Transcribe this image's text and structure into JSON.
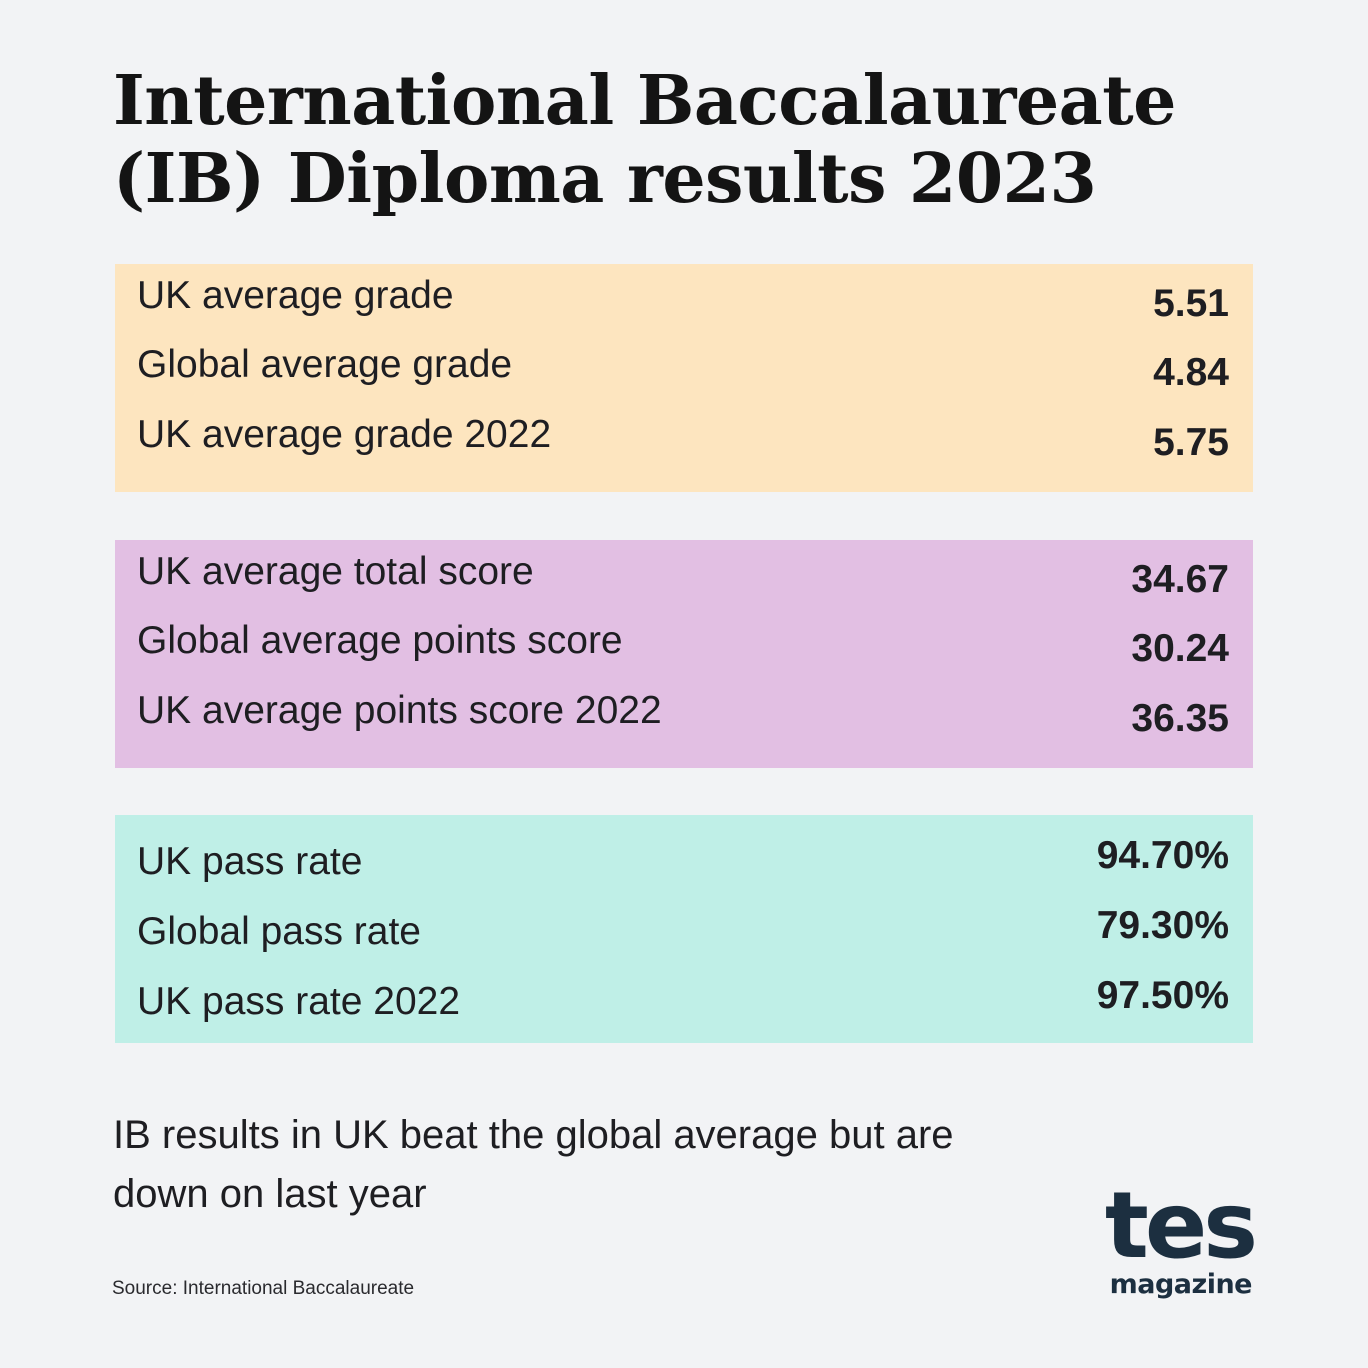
{
  "title": "International Baccalaureate (IB) Diploma results 2023",
  "panels": [
    {
      "color": "#fde5bf",
      "rows": [
        {
          "label": "UK average grade",
          "value": "5.51"
        },
        {
          "label": "Global average grade",
          "value": "4.84"
        },
        {
          "label": "UK average grade 2022",
          "value": "5.75"
        }
      ]
    },
    {
      "color": "#e2bfe3",
      "rows": [
        {
          "label": "UK average total score",
          "value": "34.67"
        },
        {
          "label": "Global average points score",
          "value": "30.24"
        },
        {
          "label": "UK average points score 2022",
          "value": "36.35"
        }
      ]
    },
    {
      "color": "#bfefe7",
      "rows": [
        {
          "label": "UK pass rate",
          "value": "94.70%"
        },
        {
          "label": "Global pass rate",
          "value": "79.30%"
        },
        {
          "label": "UK pass rate 2022",
          "value": "97.50%"
        }
      ]
    }
  ],
  "caption": "IB results in UK beat the global average but are down on last year",
  "source": "Source: International Baccalaureate",
  "logo": {
    "mark": "tes",
    "sub": "magazine",
    "color": "#1c2f40"
  }
}
